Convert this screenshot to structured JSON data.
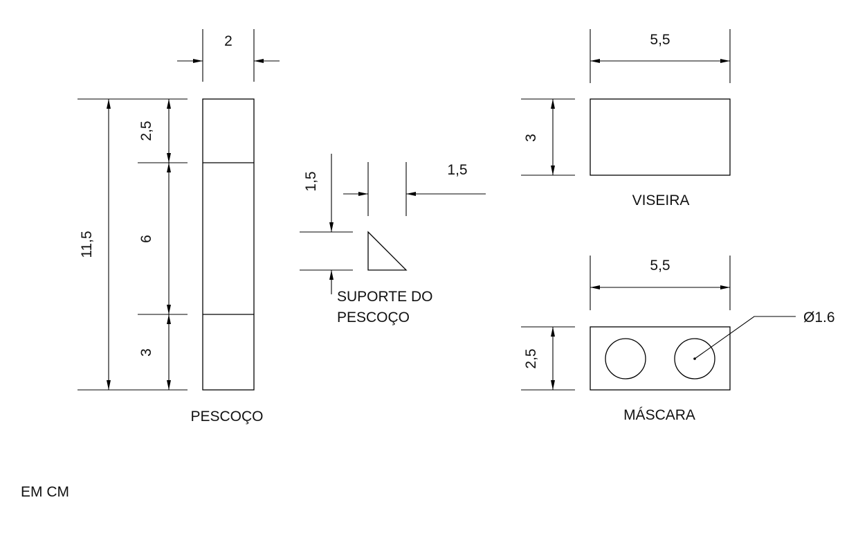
{
  "views": {
    "pescoco": {
      "label": "PESCOÇO",
      "width": "2",
      "total_height": "11,5",
      "segments": [
        "2,5",
        "6",
        "3"
      ]
    },
    "suporte": {
      "label_line1": "SUPORTE DO",
      "label_line2": "PESCOÇO",
      "height": "1,5",
      "width": "1,5"
    },
    "viseira": {
      "label": "VISEIRA",
      "width": "5,5",
      "height": "3"
    },
    "mascara": {
      "label": "MÁSCARA",
      "width": "5,5",
      "height": "2,5",
      "hole_diameter": "Ø1.6"
    }
  },
  "units_note": "EM CM"
}
